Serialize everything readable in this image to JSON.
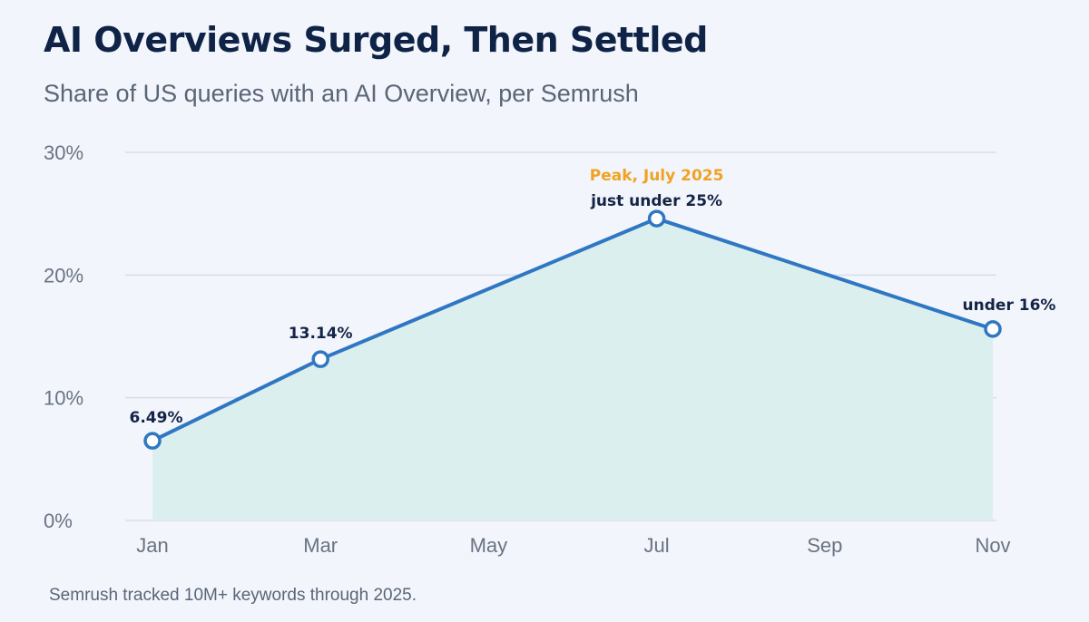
{
  "title": "AI Overviews Surged, Then Settled",
  "subtitle": "Share of US queries with an AI Overview, per Semrush",
  "footnote": "Semrush tracked 10M+ keywords through 2025.",
  "colors": {
    "line": "#2f77c2",
    "area": "#dcefef",
    "grid": "#d9dee7",
    "peak_annotation": "#f0a323",
    "marker_fill": "#ffffff"
  },
  "chart_data": {
    "type": "line",
    "title": "AI Overviews Surged, Then Settled",
    "subtitle": "Share of US queries with an AI Overview, per Semrush",
    "xlabel": "",
    "ylabel": "",
    "categories": [
      "Jan",
      "Mar",
      "May",
      "Jul",
      "Sep",
      "Nov"
    ],
    "y_ticks": [
      "0%",
      "10%",
      "20%",
      "30%"
    ],
    "y_tick_values": [
      0,
      10,
      20,
      30
    ],
    "ylim": [
      0,
      30
    ],
    "grid": true,
    "area_fill": true,
    "points": [
      {
        "x": "Jan",
        "y": 6.49,
        "label": "6.49%"
      },
      {
        "x": "Mar",
        "y": 13.14,
        "label": "13.14%"
      },
      {
        "x": "Jul",
        "y": 24.6,
        "label": "just under 25%"
      },
      {
        "x": "Nov",
        "y": 15.6,
        "label": "under 16%"
      }
    ],
    "annotations": [
      {
        "x": "Jul",
        "text": "Peak, July 2025"
      }
    ]
  }
}
